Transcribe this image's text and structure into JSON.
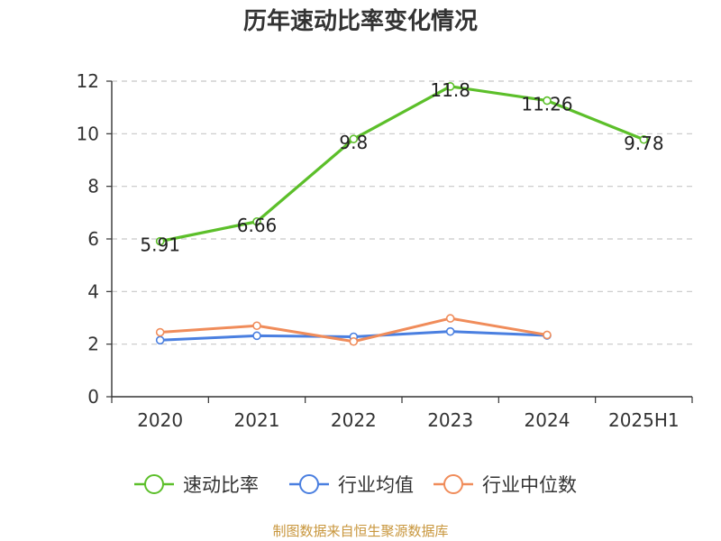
{
  "chart_data": {
    "type": "line",
    "title": "历年速动比率变化情况",
    "xlabel": "",
    "ylabel": "",
    "categories": [
      "2020",
      "2021",
      "2022",
      "2023",
      "2024",
      "2025H1"
    ],
    "ylim": [
      0,
      12
    ],
    "yticks": [
      0,
      2,
      4,
      6,
      8,
      10,
      12
    ],
    "grid": true,
    "legend_position": "bottom",
    "series": [
      {
        "name": "速动比率",
        "color": "#5cbf2a",
        "values": [
          5.91,
          6.66,
          9.8,
          11.8,
          11.26,
          9.78
        ],
        "labels": [
          "5.91",
          "6.66",
          "9.8",
          "11.8",
          "11.26",
          "9.78"
        ]
      },
      {
        "name": "行业均值",
        "color": "#4a7fe0",
        "values": [
          2.15,
          2.32,
          2.28,
          2.48,
          2.33,
          null
        ]
      },
      {
        "name": "行业中位数",
        "color": "#f08c5a",
        "values": [
          2.45,
          2.7,
          2.1,
          2.98,
          2.35,
          null
        ]
      }
    ]
  },
  "source": "制图数据来自恒生聚源数据库"
}
